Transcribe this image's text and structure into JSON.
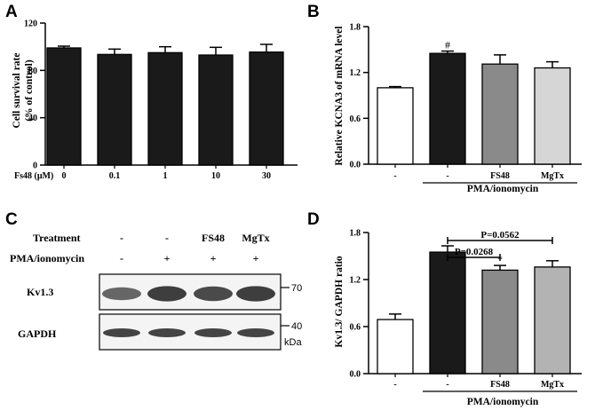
{
  "panel_labels": {
    "a": "A",
    "b": "B",
    "c": "C",
    "d": "D"
  },
  "chart_data": [
    {
      "panel": "A",
      "type": "bar",
      "ylabel_line1": "Cell survival rate",
      "ylabel_line2": "(% of control)",
      "xlabel": "Fs48 (μM)",
      "categories": [
        "0",
        "0.1",
        "1",
        "10",
        "30"
      ],
      "values": [
        99,
        93.5,
        95,
        93,
        95.5
      ],
      "errors": [
        1.5,
        4.5,
        5,
        6.5,
        6.5
      ],
      "bar_colors": [
        "#1a1a1a",
        "#1a1a1a",
        "#1a1a1a",
        "#1a1a1a",
        "#1a1a1a"
      ],
      "ylim": [
        0,
        120
      ],
      "yticks": [
        "0",
        "40",
        "80",
        "120"
      ],
      "ytick_values": [
        0,
        40,
        80,
        120
      ]
    },
    {
      "panel": "B",
      "type": "bar",
      "ylabel": "Relative  KCNA3 of mRNA level",
      "categories": [
        "-",
        "-",
        "FS48",
        "MgTx"
      ],
      "values": [
        1.0,
        1.45,
        1.31,
        1.26
      ],
      "errors": [
        0.015,
        0.03,
        0.12,
        0.08
      ],
      "bar_colors": [
        "#ffffff",
        "#1a1a1a",
        "#8a8a8a",
        "#d6d6d6"
      ],
      "markers": [
        "",
        "#",
        "",
        ""
      ],
      "group_label": "PMA/ionomycin",
      "ylim": [
        0,
        1.8
      ],
      "yticks": [
        "0.0",
        "0.6",
        "1.2",
        "1.8"
      ],
      "ytick_values": [
        0,
        0.6,
        1.2,
        1.8
      ]
    },
    {
      "panel": "D",
      "type": "bar",
      "ylabel": "Kv1.3/ GAPDH ratio",
      "categories": [
        "-",
        "-",
        "FS48",
        "MgTx"
      ],
      "values": [
        0.69,
        1.55,
        1.32,
        1.36
      ],
      "errors": [
        0.07,
        0.08,
        0.06,
        0.08
      ],
      "bar_colors": [
        "#ffffff",
        "#1a1a1a",
        "#8a8a8a",
        "#b3b3b3"
      ],
      "markers": [
        "",
        "",
        "*",
        ""
      ],
      "group_label": "PMA/ionomycin",
      "ylim": [
        0,
        1.8
      ],
      "yticks": [
        "0.0",
        "0.6",
        "1.2",
        "1.8"
      ],
      "ytick_values": [
        0,
        0.6,
        1.2,
        1.8
      ],
      "comparisons": [
        {
          "label": "P=0.0268",
          "from": 1,
          "to": 2
        },
        {
          "label": "P=0.0562",
          "from": 1,
          "to": 3
        }
      ]
    }
  ],
  "blot": {
    "treatment_label": "Treatment",
    "treatment_values": [
      "-",
      "-",
      "FS48",
      "MgTx"
    ],
    "pma_label": "PMA/ionomycin",
    "pma_values": [
      "-",
      "+",
      "+",
      "+"
    ],
    "rows": [
      {
        "name": "Kv1.3",
        "mw": "70",
        "intensity": [
          0.55,
          0.9,
          0.8,
          0.9
        ]
      },
      {
        "name": "GAPDH",
        "mw": "40",
        "intensity": [
          0.85,
          0.85,
          0.85,
          0.85
        ]
      }
    ],
    "unit": "kDa"
  }
}
